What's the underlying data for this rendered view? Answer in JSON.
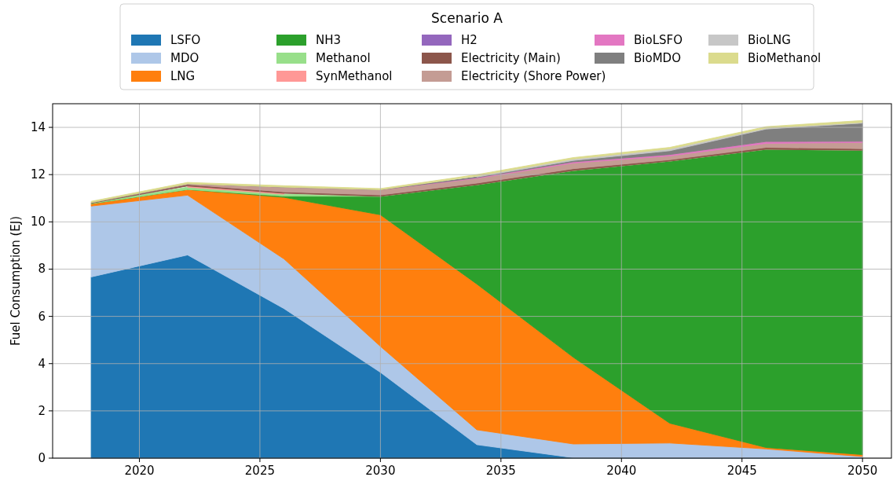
{
  "chart_data": {
    "type": "area",
    "stacked": true,
    "ylabel": "Fuel Consumption (EJ)",
    "legend_title": "Scenario A",
    "legend": "top",
    "grid": true,
    "x": [
      2018,
      2022,
      2026,
      2030,
      2034,
      2038,
      2042,
      2046,
      2050
    ],
    "xlim": [
      2016.4,
      2051.2
    ],
    "xticks": [
      2020,
      2025,
      2030,
      2035,
      2040,
      2045,
      2050
    ],
    "ylim": [
      0,
      15
    ],
    "yticks": [
      0,
      2,
      4,
      6,
      8,
      10,
      12,
      14
    ],
    "series": [
      {
        "name": "LSFO",
        "color": "#1f77b4",
        "values": [
          7.67,
          8.6,
          6.33,
          3.63,
          0.57,
          0.02,
          0,
          0,
          0
        ]
      },
      {
        "name": "MDO",
        "color": "#aec7e8",
        "values": [
          3.0,
          2.53,
          2.1,
          1.1,
          0.63,
          0.58,
          0.64,
          0.39,
          0.07
        ]
      },
      {
        "name": "LNG",
        "color": "#ff7f0e",
        "values": [
          0.1,
          0.24,
          2.61,
          5.57,
          6.17,
          3.67,
          0.84,
          0.06,
          0.08
        ]
      },
      {
        "name": "NH3",
        "color": "#2ca02c",
        "values": [
          0,
          0,
          0.05,
          0.78,
          4.2,
          7.9,
          11.09,
          12.62,
          12.88
        ]
      },
      {
        "name": "Methanol",
        "color": "#98df8a",
        "values": [
          0.02,
          0.1,
          0.08,
          0,
          0,
          0,
          0,
          0,
          0
        ]
      },
      {
        "name": "SynMethanol",
        "color": "#ff9896",
        "values": [
          null,
          0.05,
          0.04,
          null,
          null,
          null,
          null,
          null,
          null
        ]
      },
      {
        "name": "H2",
        "color": "#9467bd",
        "values": [
          null,
          null,
          null,
          null,
          null,
          null,
          null,
          null,
          null
        ]
      },
      {
        "name": "Electricity (Main)",
        "color": "#8c564b",
        "values": [
          0.02,
          0.06,
          0.06,
          0.06,
          0.07,
          0.08,
          0.06,
          0.08,
          0.07
        ]
      },
      {
        "name": "Electricity (Shore Power)",
        "color": "#c49c94",
        "values": [
          0.01,
          0.03,
          0.2,
          0.22,
          0.2,
          0.24,
          0.16,
          0.17,
          0.26
        ]
      },
      {
        "name": "BioLSFO",
        "color": "#e377c2",
        "values": [
          0,
          0,
          0,
          0,
          0.03,
          0.05,
          0.06,
          0.08,
          0.05
        ]
      },
      {
        "name": "BioMDO",
        "color": "#7f7f7f",
        "values": [
          0,
          0,
          0,
          0,
          0.03,
          0.06,
          0.16,
          0.53,
          0.77
        ]
      },
      {
        "name": "BioLNG",
        "color": "#c7c7c7",
        "values": [
          null,
          null,
          null,
          null,
          0.04,
          0.06,
          0.08,
          0.04,
          0.03
        ]
      },
      {
        "name": "BioMethanol",
        "color": "#dbdb8d",
        "values": [
          0.05,
          0.06,
          0.06,
          0.05,
          0.06,
          0.06,
          0.06,
          0.06,
          0.08
        ]
      }
    ]
  }
}
